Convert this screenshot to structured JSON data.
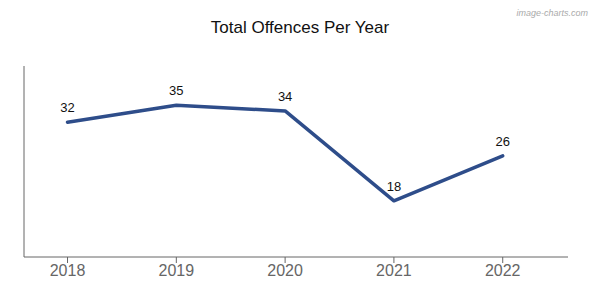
{
  "chart_data": {
    "type": "line",
    "title": "Total Offences Per Year",
    "annotations": [
      "image-charts.com"
    ],
    "x": [
      2018,
      2019,
      2020,
      2021,
      2022
    ],
    "values": [
      32,
      35,
      34,
      18,
      26
    ],
    "color": "#2e4d8a",
    "xlim": [
      2017.6,
      2022.6
    ],
    "xticks": [
      2018,
      2019,
      2020,
      2021,
      2022
    ],
    "ylim": [
      8,
      42
    ],
    "grid": false,
    "data_labels": true,
    "tick_labels": "x"
  }
}
